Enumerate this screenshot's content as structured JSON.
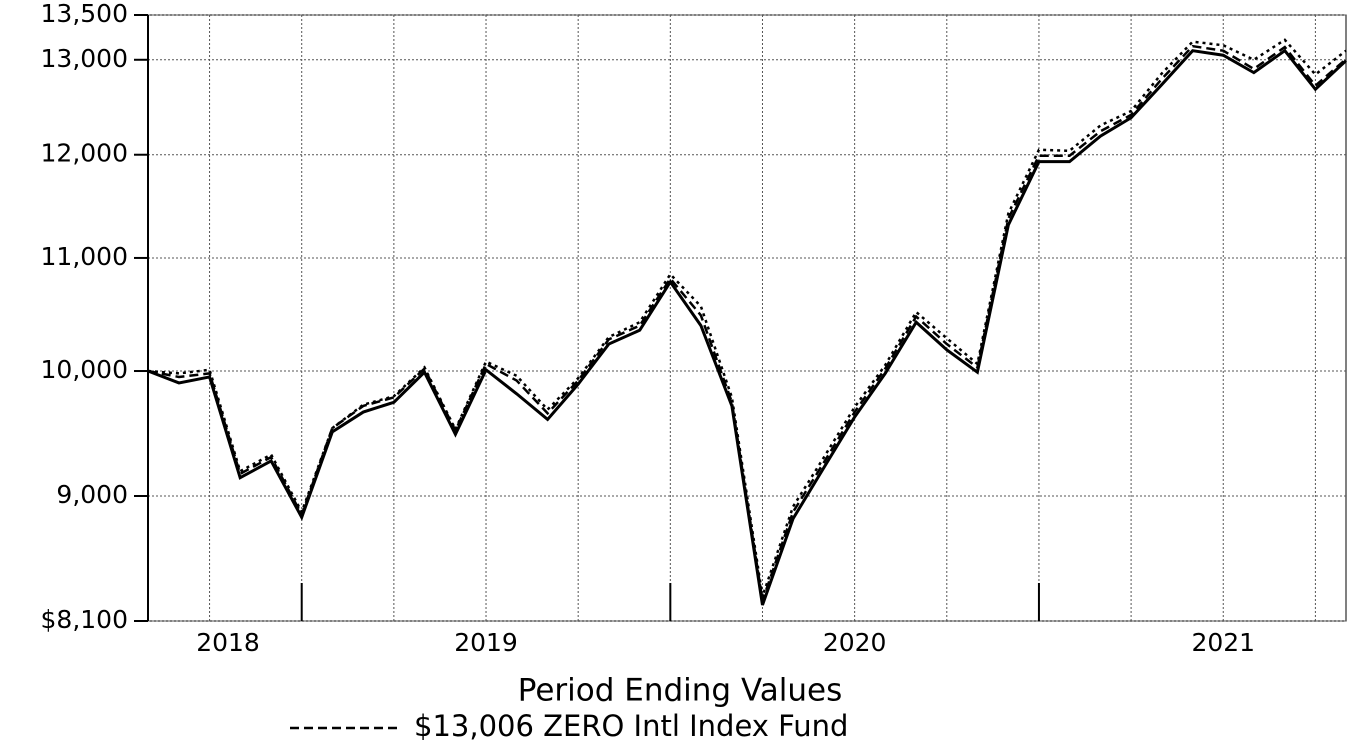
{
  "chart_data": {
    "type": "line",
    "title": "Period Ending Values",
    "yscale": "log",
    "grid": true,
    "legend": "bottom",
    "x": [
      2018.083,
      2018.167,
      2018.25,
      2018.333,
      2018.417,
      2018.5,
      2018.583,
      2018.667,
      2018.75,
      2018.833,
      2018.917,
      2019,
      2019.083,
      2019.167,
      2019.25,
      2019.333,
      2019.417,
      2019.5,
      2019.583,
      2019.667,
      2019.75,
      2019.833,
      2019.917,
      2020,
      2020.083,
      2020.167,
      2020.25,
      2020.333,
      2020.417,
      2020.5,
      2020.583,
      2020.667,
      2020.75,
      2020.833,
      2020.917,
      2021,
      2021.083,
      2021.167,
      2021.25,
      2021.333
    ],
    "xlim": [
      2018.083,
      2021.333
    ],
    "xticks": [
      2018,
      2019,
      2020,
      2021
    ],
    "x_gridlines": [
      2018.25,
      2018.5,
      2018.75,
      2019,
      2019.25,
      2019.5,
      2019.75,
      2020,
      2020.25,
      2020.5,
      2020.75,
      2021,
      2021.25
    ],
    "x_major_ticks": [
      2018.5,
      2019.5,
      2020.5
    ],
    "ylim": [
      8100,
      13500
    ],
    "yticks": [
      {
        "value": 8100,
        "label": "$8,100"
      },
      {
        "value": 9000,
        "label": "9,000"
      },
      {
        "value": 10000,
        "label": "10,000"
      },
      {
        "value": 11000,
        "label": "11,000"
      },
      {
        "value": 12000,
        "label": "12,000"
      },
      {
        "value": 13000,
        "label": "13,000"
      },
      {
        "value": 13500,
        "label": "13,500"
      }
    ],
    "series": [
      {
        "color": "#000000",
        "line_style": "solid",
        "values": [
          10000,
          9900,
          9950,
          9140,
          9270,
          8840,
          9500,
          9660,
          9740,
          9990,
          9480,
          10010,
          9810,
          9600,
          9890,
          10230,
          10350,
          10780,
          10390,
          9710,
          8210,
          8830,
          9220,
          9620,
          9980,
          10420,
          10180,
          9990,
          11310,
          11930,
          11930,
          12190,
          12380,
          12730,
          13100,
          13050,
          12860,
          13100,
          12680,
          12990
        ]
      },
      {
        "name": "$13,006 ZERO Intl Index Fund",
        "color": "#000000",
        "line_style": "dashed",
        "values": [
          10000,
          9950,
          9980,
          9170,
          9300,
          8860,
          9530,
          9710,
          9780,
          10020,
          9510,
          10060,
          9920,
          9650,
          9920,
          10270,
          10390,
          10810,
          10480,
          9740,
          8240,
          8880,
          9260,
          9660,
          10020,
          10470,
          10230,
          10030,
          11370,
          11990,
          11990,
          12240,
          12410,
          12790,
          13150,
          13100,
          12900,
          13140,
          12720,
          13006
        ]
      },
      {
        "color": "#000000",
        "line_style": "dotted",
        "values": [
          10000,
          9980,
          10010,
          9190,
          9320,
          8880,
          9530,
          9720,
          9790,
          10030,
          9520,
          10080,
          9960,
          9680,
          9940,
          10290,
          10420,
          10850,
          10560,
          9780,
          8270,
          8920,
          9300,
          9700,
          10050,
          10510,
          10280,
          10060,
          11420,
          12050,
          12040,
          12300,
          12450,
          12850,
          13200,
          13160,
          13000,
          13220,
          12840,
          13100
        ]
      }
    ]
  }
}
